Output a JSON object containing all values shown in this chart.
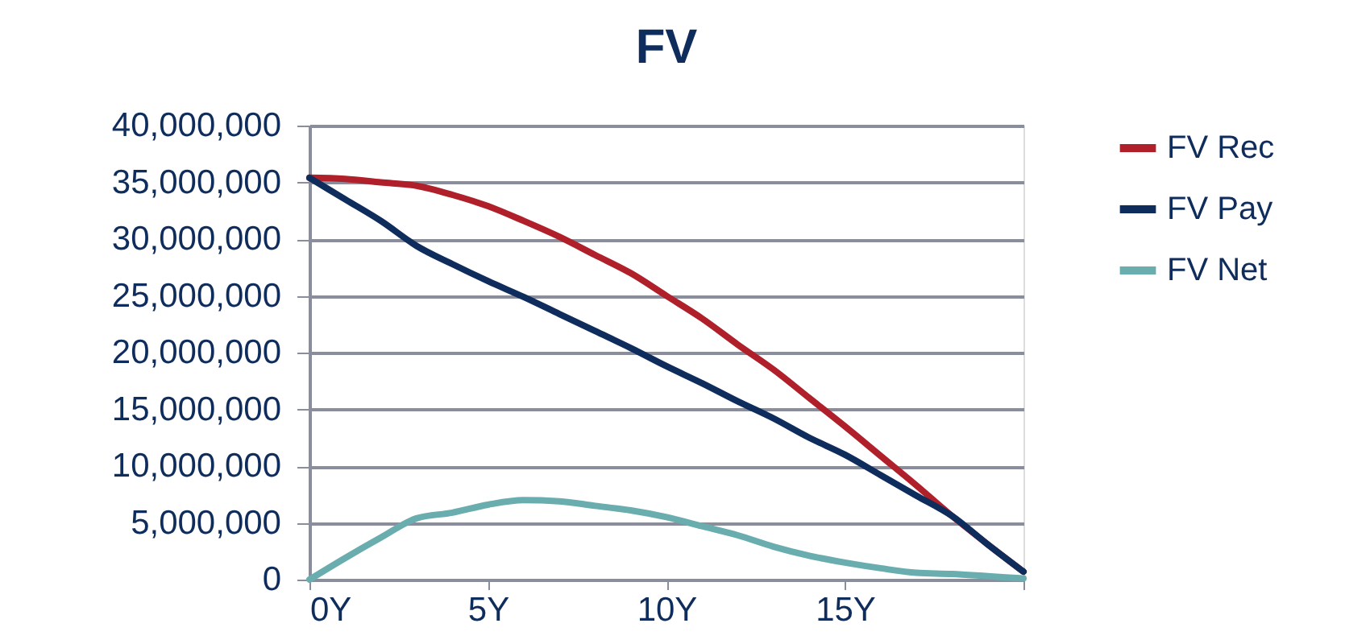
{
  "chart_data": {
    "type": "line",
    "title": "FV",
    "x": [
      0,
      1,
      2,
      3,
      4,
      5,
      6,
      7,
      8,
      9,
      10,
      11,
      12,
      13,
      14,
      15,
      16,
      17,
      18,
      19,
      20
    ],
    "series": [
      {
        "name": "FV Rec",
        "color": "#b0202a",
        "values": [
          35400000,
          35300000,
          35000000,
          34700000,
          33900000,
          32900000,
          31600000,
          30200000,
          28600000,
          27000000,
          25000000,
          23000000,
          20700000,
          18500000,
          16000000,
          13500000,
          10900000,
          8300000,
          5600000,
          3100000,
          700000
        ]
      },
      {
        "name": "FV Pay",
        "color": "#0f2d5c",
        "values": [
          35400000,
          33500000,
          31600000,
          29400000,
          27800000,
          26300000,
          24900000,
          23400000,
          21900000,
          20400000,
          18800000,
          17300000,
          15700000,
          14200000,
          12500000,
          11000000,
          9200000,
          7400000,
          5600000,
          3100000,
          700000
        ]
      },
      {
        "name": "FV Net",
        "color": "#6aadaf",
        "values": [
          0,
          1900000,
          3700000,
          5400000,
          5900000,
          6600000,
          7000000,
          6900000,
          6500000,
          6100000,
          5500000,
          4700000,
          3900000,
          2900000,
          2100000,
          1500000,
          1000000,
          600000,
          500000,
          300000,
          100000
        ]
      }
    ],
    "xlim": [
      0,
      20
    ],
    "xticks": [
      {
        "value": 0,
        "label": "0Y"
      },
      {
        "value": 5,
        "label": "5Y"
      },
      {
        "value": 10,
        "label": "10Y"
      },
      {
        "value": 15,
        "label": "15Y"
      },
      {
        "value": 20,
        "label": null
      }
    ],
    "ylim": [
      0,
      40000000
    ],
    "yticks": [
      {
        "value": 0,
        "label": "0"
      },
      {
        "value": 5000000,
        "label": "5,000,000"
      },
      {
        "value": 10000000,
        "label": "10,000,000"
      },
      {
        "value": 15000000,
        "label": "15,000,000"
      },
      {
        "value": 20000000,
        "label": "20,000,000"
      },
      {
        "value": 25000000,
        "label": "25,000,000"
      },
      {
        "value": 30000000,
        "label": "30,000,000"
      },
      {
        "value": 35000000,
        "label": "35,000,000"
      },
      {
        "value": 40000000,
        "label": "40,000,000"
      }
    ],
    "grid": "y",
    "legend": "right",
    "marker": "none",
    "line_style": "solid"
  }
}
